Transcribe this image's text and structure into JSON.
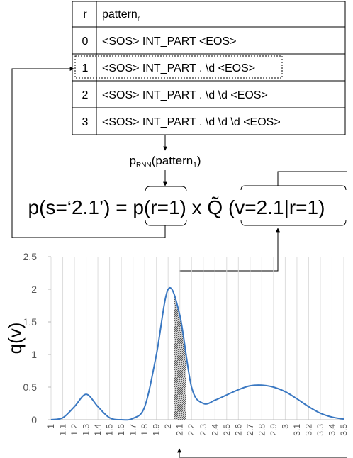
{
  "table": {
    "header": [
      "r",
      "pattern"
    ],
    "header_subscript": "r",
    "rows": [
      [
        "0",
        "<SOS> INT_PART <EOS>"
      ],
      [
        "1",
        "<SOS> INT_PART . \\d <EOS>"
      ],
      [
        "2",
        "<SOS> INT_PART . \\d \\d <EOS>"
      ],
      [
        "3",
        "<SOS> INT_PART . \\d \\d \\d <EOS>"
      ]
    ]
  },
  "annotation": {
    "text": "p",
    "subscript": "RNN",
    "arg": "(pattern",
    "arg_subscript": "1",
    "close": ")"
  },
  "formula": "p(s=‘2.1’) = p(r=1) x Q̃ (v=2.1|r=1)",
  "chart_data": {
    "type": "line",
    "ylabel": "q(v)",
    "categories": [
      "1",
      "1.1",
      "1.2",
      "1.3",
      "1.4",
      "1.5",
      "1.6",
      "1.7",
      "1.8",
      "1.9",
      "2",
      "2.1",
      "2.2",
      "2.3",
      "2.4",
      "2.5",
      "2.6",
      "2.7",
      "2.8",
      "2.9",
      "3",
      "3.1",
      "3.2",
      "3.3",
      "3.4",
      "3.5"
    ],
    "values": [
      0.0,
      0.03,
      0.2,
      0.39,
      0.2,
      0.03,
      0.0,
      0.02,
      0.2,
      1.0,
      2.0,
      1.6,
      0.5,
      0.25,
      0.3,
      0.38,
      0.46,
      0.52,
      0.53,
      0.5,
      0.43,
      0.32,
      0.2,
      0.1,
      0.04,
      0.01
    ],
    "color": "#3a78c2",
    "ylim": [
      0,
      2.5
    ],
    "yticks": [
      0,
      0.5,
      1,
      1.5,
      2,
      2.5
    ],
    "grid": true
  }
}
